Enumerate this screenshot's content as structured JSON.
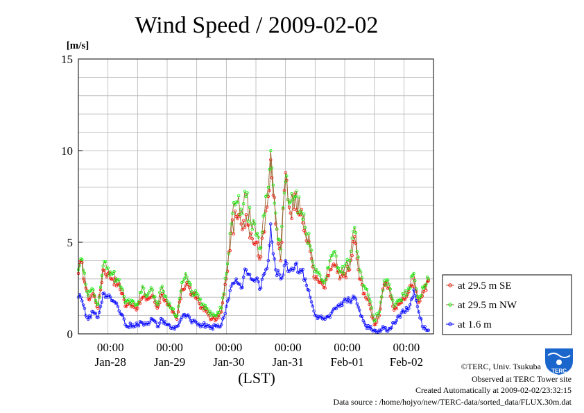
{
  "chart_data": {
    "type": "line",
    "title": "Wind Speed / 2009-02-02",
    "ylabel": "[m/s]",
    "xlabel": "(LST)",
    "ylim": [
      0,
      15
    ],
    "yticks": [
      "0",
      "5",
      "10",
      "15"
    ],
    "xlim_hours": [
      0,
      144
    ],
    "x_hour_labels": [
      "00:00",
      "00:00",
      "00:00",
      "00:00",
      "00:00",
      "00:00"
    ],
    "x_date_labels": [
      "Jan-28",
      "Jan-29",
      "Jan-30",
      "Jan-31",
      "Feb-01",
      "Feb-02"
    ],
    "grid": true,
    "legend_position": "right",
    "series": [
      {
        "name": "at 29.5 m SE",
        "color": "#ff0000",
        "line_color": "#996633",
        "keypoints": [
          [
            0,
            3.3
          ],
          [
            1,
            4.0
          ],
          [
            3,
            2.5
          ],
          [
            4,
            1.9
          ],
          [
            6,
            2.2
          ],
          [
            8,
            1.4
          ],
          [
            10,
            3.5
          ],
          [
            12,
            3.3
          ],
          [
            14,
            3.0
          ],
          [
            16,
            2.7
          ],
          [
            18,
            2.2
          ],
          [
            19,
            1.5
          ],
          [
            20,
            1.6
          ],
          [
            22,
            1.6
          ],
          [
            24,
            1.4
          ],
          [
            26,
            2.0
          ],
          [
            28,
            1.9
          ],
          [
            30,
            2.1
          ],
          [
            32,
            1.4
          ],
          [
            34,
            2.2
          ],
          [
            36,
            1.6
          ],
          [
            38,
            1.2
          ],
          [
            40,
            0.8
          ],
          [
            42,
            2.4
          ],
          [
            44,
            2.8
          ],
          [
            46,
            2.1
          ],
          [
            48,
            2.0
          ],
          [
            50,
            1.4
          ],
          [
            52,
            1.2
          ],
          [
            54,
            0.8
          ],
          [
            56,
            0.8
          ],
          [
            58,
            1.2
          ],
          [
            60,
            3.0
          ],
          [
            62,
            5.5
          ],
          [
            64,
            6.4
          ],
          [
            66,
            6.0
          ],
          [
            68,
            6.5
          ],
          [
            70,
            5.5
          ],
          [
            72,
            5.0
          ],
          [
            74,
            4.2
          ],
          [
            76,
            6.7
          ],
          [
            77,
            7.5
          ],
          [
            78,
            9.5
          ],
          [
            80,
            6.0
          ],
          [
            82,
            4.0
          ],
          [
            84,
            8.8
          ],
          [
            86,
            6.6
          ],
          [
            88,
            7.7
          ],
          [
            90,
            6.5
          ],
          [
            92,
            5.5
          ],
          [
            94,
            4.5
          ],
          [
            96,
            3.0
          ],
          [
            98,
            2.8
          ],
          [
            100,
            2.5
          ],
          [
            102,
            3.5
          ],
          [
            104,
            3.7
          ],
          [
            106,
            3.0
          ],
          [
            108,
            3.3
          ],
          [
            110,
            3.5
          ],
          [
            112,
            5.3
          ],
          [
            114,
            3.0
          ],
          [
            116,
            2.2
          ],
          [
            118,
            1.6
          ],
          [
            120,
            0.5
          ],
          [
            122,
            1.0
          ],
          [
            124,
            2.7
          ],
          [
            126,
            2.5
          ],
          [
            128,
            1.3
          ],
          [
            130,
            1.6
          ],
          [
            132,
            1.9
          ],
          [
            134,
            2.3
          ],
          [
            136,
            3.0
          ],
          [
            138,
            1.7
          ],
          [
            140,
            2.3
          ],
          [
            142,
            2.9
          ]
        ]
      },
      {
        "name": "at 29.5 m NW",
        "color": "#00ff00",
        "line_color": "#996633",
        "keypoints": [
          [
            0,
            3.5
          ],
          [
            1,
            4.1
          ],
          [
            3,
            2.7
          ],
          [
            4,
            2.1
          ],
          [
            6,
            2.4
          ],
          [
            8,
            1.6
          ],
          [
            10,
            3.7
          ],
          [
            12,
            3.6
          ],
          [
            14,
            3.3
          ],
          [
            16,
            2.9
          ],
          [
            18,
            2.4
          ],
          [
            19,
            1.7
          ],
          [
            20,
            1.8
          ],
          [
            22,
            1.8
          ],
          [
            24,
            1.6
          ],
          [
            26,
            2.6
          ],
          [
            28,
            2.1
          ],
          [
            30,
            2.4
          ],
          [
            32,
            1.6
          ],
          [
            34,
            2.6
          ],
          [
            36,
            1.8
          ],
          [
            38,
            1.4
          ],
          [
            40,
            1.0
          ],
          [
            42,
            2.8
          ],
          [
            44,
            3.1
          ],
          [
            46,
            2.3
          ],
          [
            48,
            2.2
          ],
          [
            50,
            1.6
          ],
          [
            52,
            1.4
          ],
          [
            54,
            1.0
          ],
          [
            56,
            1.0
          ],
          [
            58,
            1.4
          ],
          [
            60,
            3.3
          ],
          [
            62,
            6.0
          ],
          [
            64,
            7.2
          ],
          [
            66,
            6.8
          ],
          [
            68,
            7.5
          ],
          [
            70,
            6.0
          ],
          [
            72,
            5.4
          ],
          [
            74,
            4.7
          ],
          [
            76,
            7.5
          ],
          [
            77,
            8.0
          ],
          [
            78,
            10.0
          ],
          [
            80,
            6.6
          ],
          [
            82,
            4.6
          ],
          [
            84,
            8.3
          ],
          [
            86,
            7.2
          ],
          [
            88,
            7.5
          ],
          [
            90,
            6.7
          ],
          [
            92,
            5.8
          ],
          [
            94,
            4.8
          ],
          [
            96,
            3.4
          ],
          [
            98,
            3.2
          ],
          [
            100,
            2.9
          ],
          [
            102,
            4.0
          ],
          [
            104,
            4.5
          ],
          [
            106,
            3.4
          ],
          [
            108,
            3.7
          ],
          [
            110,
            4.0
          ],
          [
            112,
            5.8
          ],
          [
            114,
            3.5
          ],
          [
            116,
            2.6
          ],
          [
            118,
            1.9
          ],
          [
            120,
            0.7
          ],
          [
            122,
            1.2
          ],
          [
            124,
            2.9
          ],
          [
            126,
            2.7
          ],
          [
            128,
            1.5
          ],
          [
            130,
            1.8
          ],
          [
            132,
            2.1
          ],
          [
            134,
            2.5
          ],
          [
            136,
            3.3
          ],
          [
            138,
            1.9
          ],
          [
            140,
            2.5
          ],
          [
            142,
            3.0
          ]
        ]
      },
      {
        "name": "at 1.6 m",
        "color": "#0000ff",
        "line_color": "#0000ff",
        "keypoints": [
          [
            0,
            2.0
          ],
          [
            1,
            2.0
          ],
          [
            3,
            1.0
          ],
          [
            4,
            0.8
          ],
          [
            6,
            1.2
          ],
          [
            8,
            0.9
          ],
          [
            10,
            2.2
          ],
          [
            12,
            2.0
          ],
          [
            14,
            1.8
          ],
          [
            16,
            1.5
          ],
          [
            18,
            1.0
          ],
          [
            19,
            0.5
          ],
          [
            20,
            0.4
          ],
          [
            22,
            0.5
          ],
          [
            24,
            0.5
          ],
          [
            26,
            0.6
          ],
          [
            28,
            0.6
          ],
          [
            30,
            0.8
          ],
          [
            32,
            0.4
          ],
          [
            34,
            0.8
          ],
          [
            36,
            0.5
          ],
          [
            38,
            0.3
          ],
          [
            40,
            0.4
          ],
          [
            42,
            0.9
          ],
          [
            44,
            1.0
          ],
          [
            46,
            0.6
          ],
          [
            48,
            0.6
          ],
          [
            50,
            0.5
          ],
          [
            52,
            0.5
          ],
          [
            54,
            0.4
          ],
          [
            56,
            0.4
          ],
          [
            58,
            0.5
          ],
          [
            60,
            1.5
          ],
          [
            62,
            2.6
          ],
          [
            64,
            3.0
          ],
          [
            66,
            2.5
          ],
          [
            68,
            3.5
          ],
          [
            70,
            3.0
          ],
          [
            72,
            3.0
          ],
          [
            74,
            2.5
          ],
          [
            76,
            3.5
          ],
          [
            77,
            4.0
          ],
          [
            78,
            6.0
          ],
          [
            80,
            3.5
          ],
          [
            82,
            3.0
          ],
          [
            84,
            4.0
          ],
          [
            86,
            3.5
          ],
          [
            88,
            3.8
          ],
          [
            90,
            3.5
          ],
          [
            92,
            3.0
          ],
          [
            94,
            2.0
          ],
          [
            96,
            1.0
          ],
          [
            98,
            0.9
          ],
          [
            100,
            0.8
          ],
          [
            102,
            0.9
          ],
          [
            104,
            1.4
          ],
          [
            106,
            1.5
          ],
          [
            108,
            1.9
          ],
          [
            110,
            1.8
          ],
          [
            112,
            2.0
          ],
          [
            114,
            1.3
          ],
          [
            116,
            0.6
          ],
          [
            118,
            0.3
          ],
          [
            120,
            0.2
          ],
          [
            122,
            0.2
          ],
          [
            124,
            0.3
          ],
          [
            126,
            0.3
          ],
          [
            128,
            0.6
          ],
          [
            130,
            1.0
          ],
          [
            132,
            1.2
          ],
          [
            134,
            1.4
          ],
          [
            136,
            2.4
          ],
          [
            138,
            1.2
          ],
          [
            140,
            0.3
          ],
          [
            142,
            0.2
          ]
        ]
      }
    ]
  },
  "footer": {
    "copyright": "©TERC, Univ. Tsukuba",
    "observed": "Observed at TERC Tower site",
    "created": "Created Automatically at 2009-02-02/23:32:15",
    "source": "Data source : /home/hojyo/new/TERC-data/sorted_data/FLUX.30m.dat",
    "logo_text": "TERC",
    "logo_color": "#1a66cc"
  }
}
